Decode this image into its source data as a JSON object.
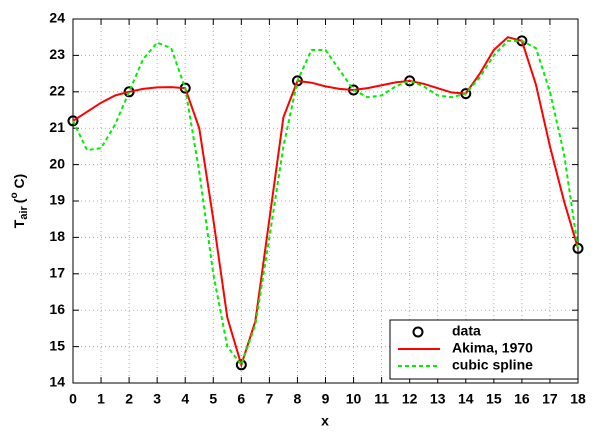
{
  "chart_data": {
    "type": "line",
    "x_label": "x",
    "y_label": {
      "main": "T",
      "sub": "air",
      "pre": "(",
      "sup": "o",
      "post": " C)"
    },
    "xlim": [
      0,
      18
    ],
    "xticks": [
      0,
      1,
      2,
      3,
      4,
      5,
      6,
      7,
      8,
      9,
      10,
      11,
      12,
      13,
      14,
      15,
      16,
      17,
      18
    ],
    "ylim": [
      14,
      24
    ],
    "yticks": [
      14,
      15,
      16,
      17,
      18,
      19,
      20,
      21,
      22,
      23,
      24
    ],
    "grid": true,
    "legend": "lower right",
    "series": [
      {
        "name": "data",
        "color": "#000000",
        "marker": "circle",
        "linestyle": "none",
        "x": [
          0,
          2,
          4,
          6,
          8,
          10,
          12,
          14,
          16,
          18
        ],
        "values": [
          21.2,
          22.0,
          22.1,
          14.5,
          22.3,
          22.05,
          22.3,
          21.95,
          23.4,
          17.7
        ]
      },
      {
        "name": "Akima, 1970",
        "color": "#ff0000",
        "marker": "none",
        "linestyle": "solid",
        "x": [
          0,
          0.5,
          1,
          1.5,
          2,
          2.5,
          3,
          3.5,
          4,
          4.5,
          5,
          5.5,
          6,
          6.5,
          7,
          7.5,
          8,
          8.5,
          9,
          9.5,
          10,
          10.5,
          11,
          11.5,
          12,
          12.5,
          13,
          13.5,
          14,
          14.5,
          15,
          15.5,
          16,
          16.5,
          17,
          17.5,
          18
        ],
        "values": [
          21.2,
          21.45,
          21.7,
          21.9,
          22.0,
          22.08,
          22.12,
          22.13,
          22.1,
          21.0,
          18.5,
          15.8,
          14.5,
          15.7,
          18.5,
          21.3,
          22.3,
          22.25,
          22.15,
          22.08,
          22.05,
          22.1,
          22.18,
          22.26,
          22.3,
          22.22,
          22.1,
          21.98,
          21.95,
          22.5,
          23.15,
          23.5,
          23.4,
          22.2,
          20.5,
          19.0,
          17.7
        ]
      },
      {
        "name": "cubic spline",
        "color": "#00ee00",
        "marker": "none",
        "linestyle": "dashed",
        "x": [
          0,
          0.5,
          1,
          1.5,
          2,
          2.5,
          3,
          3.5,
          4,
          4.5,
          5,
          5.5,
          6,
          6.5,
          7,
          7.5,
          8,
          8.5,
          9,
          9.5,
          10,
          10.5,
          11,
          11.5,
          12,
          12.5,
          13,
          13.5,
          14,
          14.5,
          15,
          15.5,
          16,
          16.5,
          17,
          17.5,
          18
        ],
        "values": [
          21.2,
          20.4,
          20.45,
          21.1,
          22.0,
          22.9,
          23.35,
          23.2,
          22.1,
          19.8,
          17.0,
          15.0,
          14.5,
          15.6,
          18.0,
          20.5,
          22.3,
          23.15,
          23.15,
          22.6,
          22.05,
          21.85,
          21.9,
          22.15,
          22.3,
          22.15,
          21.9,
          21.85,
          21.95,
          22.4,
          23.0,
          23.4,
          23.4,
          23.2,
          22.0,
          20.3,
          17.7
        ]
      }
    ]
  }
}
